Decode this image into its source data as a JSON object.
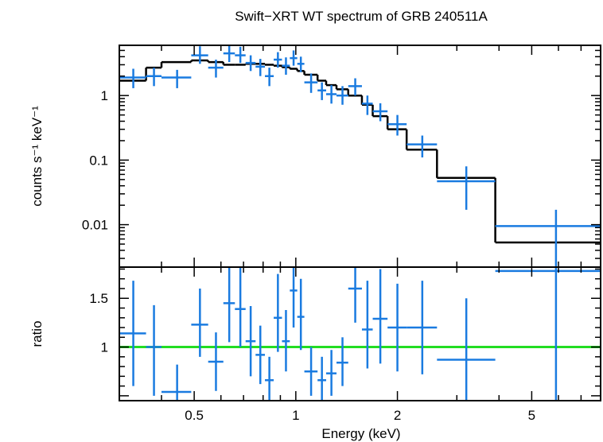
{
  "chart_data": {
    "type": "scatter",
    "title": "Swift−XRT WT spectrum of GRB 240511A",
    "xlabel": "Energy (keV)",
    "x_scale": "log",
    "xlim": [
      0.3,
      8.0
    ],
    "x_ticks": [
      {
        "value": 0.5,
        "label": "0.5"
      },
      {
        "value": 1,
        "label": "1"
      },
      {
        "value": 2,
        "label": "2"
      },
      {
        "value": 5,
        "label": "5"
      }
    ],
    "panels": {
      "spectrum": {
        "ylabel": "counts s⁻¹ keV⁻¹",
        "y_scale": "log",
        "ylim": [
          0.0022,
          6.0
        ],
        "y_ticks": [
          {
            "value": 1,
            "label": "1"
          },
          {
            "value": 0.1,
            "label": "0.1"
          },
          {
            "value": 0.01,
            "label": "0.01"
          }
        ],
        "data_color": "#1a7be0",
        "model_color": "#000000",
        "data": [
          {
            "x": 0.33,
            "xlo": 0.3,
            "xhi": 0.36,
            "y": 1.9,
            "ylo": 1.3,
            "yhi": 2.6
          },
          {
            "x": 0.38,
            "xlo": 0.36,
            "xhi": 0.4,
            "y": 2.0,
            "ylo": 1.4,
            "yhi": 2.7
          },
          {
            "x": 0.445,
            "xlo": 0.4,
            "xhi": 0.49,
            "y": 1.9,
            "ylo": 1.3,
            "yhi": 2.5
          },
          {
            "x": 0.52,
            "xlo": 0.49,
            "xhi": 0.55,
            "y": 4.2,
            "ylo": 3.1,
            "yhi": 5.8
          },
          {
            "x": 0.58,
            "xlo": 0.55,
            "xhi": 0.61,
            "y": 2.7,
            "ylo": 1.9,
            "yhi": 3.6
          },
          {
            "x": 0.635,
            "xlo": 0.61,
            "xhi": 0.66,
            "y": 4.5,
            "ylo": 3.3,
            "yhi": 6.0
          },
          {
            "x": 0.685,
            "xlo": 0.66,
            "xhi": 0.71,
            "y": 4.2,
            "ylo": 3.2,
            "yhi": 5.7
          },
          {
            "x": 0.735,
            "xlo": 0.71,
            "xhi": 0.76,
            "y": 3.2,
            "ylo": 2.4,
            "yhi": 4.2
          },
          {
            "x": 0.785,
            "xlo": 0.76,
            "xhi": 0.81,
            "y": 2.8,
            "ylo": 2.0,
            "yhi": 3.7
          },
          {
            "x": 0.835,
            "xlo": 0.81,
            "xhi": 0.86,
            "y": 2.0,
            "ylo": 1.4,
            "yhi": 2.7
          },
          {
            "x": 0.885,
            "xlo": 0.86,
            "xhi": 0.91,
            "y": 3.6,
            "ylo": 2.7,
            "yhi": 4.7
          },
          {
            "x": 0.935,
            "xlo": 0.91,
            "xhi": 0.96,
            "y": 2.9,
            "ylo": 2.1,
            "yhi": 3.9
          },
          {
            "x": 0.985,
            "xlo": 0.96,
            "xhi": 1.01,
            "y": 3.8,
            "ylo": 2.9,
            "yhi": 5.0
          },
          {
            "x": 1.035,
            "xlo": 1.01,
            "xhi": 1.06,
            "y": 3.1,
            "ylo": 2.3,
            "yhi": 4.0
          },
          {
            "x": 1.11,
            "xlo": 1.06,
            "xhi": 1.16,
            "y": 1.6,
            "ylo": 1.1,
            "yhi": 2.2
          },
          {
            "x": 1.195,
            "xlo": 1.16,
            "xhi": 1.23,
            "y": 1.2,
            "ylo": 0.85,
            "yhi": 1.6
          },
          {
            "x": 1.275,
            "xlo": 1.23,
            "xhi": 1.32,
            "y": 1.05,
            "ylo": 0.75,
            "yhi": 1.45
          },
          {
            "x": 1.375,
            "xlo": 1.32,
            "xhi": 1.43,
            "y": 1.0,
            "ylo": 0.72,
            "yhi": 1.4
          },
          {
            "x": 1.5,
            "xlo": 1.43,
            "xhi": 1.57,
            "y": 1.4,
            "ylo": 1.0,
            "yhi": 1.85
          },
          {
            "x": 1.63,
            "xlo": 1.57,
            "xhi": 1.69,
            "y": 0.75,
            "ylo": 0.5,
            "yhi": 1.0
          },
          {
            "x": 1.78,
            "xlo": 1.69,
            "xhi": 1.87,
            "y": 0.57,
            "ylo": 0.4,
            "yhi": 0.76
          },
          {
            "x": 2.0,
            "xlo": 1.87,
            "xhi": 2.13,
            "y": 0.36,
            "ylo": 0.24,
            "yhi": 0.5
          },
          {
            "x": 2.37,
            "xlo": 2.13,
            "xhi": 2.62,
            "y": 0.175,
            "ylo": 0.11,
            "yhi": 0.24
          },
          {
            "x": 3.2,
            "xlo": 2.62,
            "xhi": 3.9,
            "y": 0.047,
            "ylo": 0.017,
            "yhi": 0.08
          },
          {
            "x": 5.9,
            "xlo": 3.9,
            "xhi": 8.0,
            "y": 0.0095,
            "ylo": 0.0022,
            "yhi": 0.017
          }
        ],
        "model": [
          {
            "xlo": 0.3,
            "xhi": 0.36,
            "y": 1.7
          },
          {
            "xlo": 0.36,
            "xhi": 0.4,
            "y": 2.7
          },
          {
            "xlo": 0.4,
            "xhi": 0.49,
            "y": 3.3
          },
          {
            "xlo": 0.49,
            "xhi": 0.55,
            "y": 3.5
          },
          {
            "xlo": 0.55,
            "xhi": 0.61,
            "y": 3.3
          },
          {
            "xlo": 0.61,
            "xhi": 0.66,
            "y": 3.0
          },
          {
            "xlo": 0.66,
            "xhi": 0.71,
            "y": 3.0
          },
          {
            "xlo": 0.71,
            "xhi": 0.76,
            "y": 3.1
          },
          {
            "xlo": 0.76,
            "xhi": 0.81,
            "y": 3.1
          },
          {
            "xlo": 0.81,
            "xhi": 0.86,
            "y": 3.0
          },
          {
            "xlo": 0.86,
            "xhi": 0.91,
            "y": 2.9
          },
          {
            "xlo": 0.91,
            "xhi": 0.96,
            "y": 2.75
          },
          {
            "xlo": 0.96,
            "xhi": 1.01,
            "y": 2.6
          },
          {
            "xlo": 1.01,
            "xhi": 1.06,
            "y": 2.4
          },
          {
            "xlo": 1.06,
            "xhi": 1.16,
            "y": 2.1
          },
          {
            "xlo": 1.16,
            "xhi": 1.23,
            "y": 1.7
          },
          {
            "xlo": 1.23,
            "xhi": 1.32,
            "y": 1.45
          },
          {
            "xlo": 1.32,
            "xhi": 1.43,
            "y": 1.25
          },
          {
            "xlo": 1.43,
            "xhi": 1.57,
            "y": 1.0
          },
          {
            "xlo": 1.57,
            "xhi": 1.69,
            "y": 0.72
          },
          {
            "xlo": 1.69,
            "xhi": 1.87,
            "y": 0.48
          },
          {
            "xlo": 1.87,
            "xhi": 2.13,
            "y": 0.3
          },
          {
            "xlo": 2.13,
            "xhi": 2.62,
            "y": 0.145
          },
          {
            "xlo": 2.62,
            "xhi": 3.9,
            "y": 0.053
          },
          {
            "xlo": 3.9,
            "xhi": 8.0,
            "y": 0.0053
          }
        ]
      },
      "ratio": {
        "ylabel": "ratio",
        "y_scale": "linear",
        "ylim": [
          0.45,
          1.82
        ],
        "y_ticks": [
          {
            "value": 1,
            "label": "1"
          },
          {
            "value": 1.5,
            "label": "1.5"
          }
        ],
        "reference_line": 1.0,
        "reference_color": "#22dd22",
        "data_color": "#1a7be0",
        "data": [
          {
            "x": 0.33,
            "xlo": 0.3,
            "xhi": 0.36,
            "y": 1.14,
            "ylo": 0.6,
            "yhi": 1.68
          },
          {
            "x": 0.38,
            "xlo": 0.36,
            "xhi": 0.4,
            "y": 1.0,
            "ylo": 0.5,
            "yhi": 1.43
          },
          {
            "x": 0.445,
            "xlo": 0.4,
            "xhi": 0.49,
            "y": 0.54,
            "ylo": 0.45,
            "yhi": 0.82
          },
          {
            "x": 0.52,
            "xlo": 0.49,
            "xhi": 0.55,
            "y": 1.23,
            "ylo": 0.9,
            "yhi": 1.6
          },
          {
            "x": 0.58,
            "xlo": 0.55,
            "xhi": 0.61,
            "y": 0.85,
            "ylo": 0.55,
            "yhi": 1.15
          },
          {
            "x": 0.635,
            "xlo": 0.61,
            "xhi": 0.66,
            "y": 1.45,
            "ylo": 1.05,
            "yhi": 1.82
          },
          {
            "x": 0.685,
            "xlo": 0.66,
            "xhi": 0.71,
            "y": 1.39,
            "ylo": 1.0,
            "yhi": 1.82
          },
          {
            "x": 0.735,
            "xlo": 0.71,
            "xhi": 0.76,
            "y": 1.06,
            "ylo": 0.7,
            "yhi": 1.42
          },
          {
            "x": 0.785,
            "xlo": 0.76,
            "xhi": 0.81,
            "y": 0.92,
            "ylo": 0.62,
            "yhi": 1.22
          },
          {
            "x": 0.835,
            "xlo": 0.81,
            "xhi": 0.86,
            "y": 0.66,
            "ylo": 0.45,
            "yhi": 0.9
          },
          {
            "x": 0.885,
            "xlo": 0.86,
            "xhi": 0.91,
            "y": 1.3,
            "ylo": 0.95,
            "yhi": 1.75
          },
          {
            "x": 0.935,
            "xlo": 0.91,
            "xhi": 0.96,
            "y": 1.06,
            "ylo": 0.75,
            "yhi": 1.38
          },
          {
            "x": 0.985,
            "xlo": 0.96,
            "xhi": 1.01,
            "y": 1.58,
            "ylo": 1.2,
            "yhi": 1.82
          },
          {
            "x": 1.035,
            "xlo": 1.01,
            "xhi": 1.06,
            "y": 1.31,
            "ylo": 0.97,
            "yhi": 1.7
          },
          {
            "x": 1.11,
            "xlo": 1.06,
            "xhi": 1.16,
            "y": 0.75,
            "ylo": 0.5,
            "yhi": 1.0
          },
          {
            "x": 1.195,
            "xlo": 1.16,
            "xhi": 1.23,
            "y": 0.66,
            "ylo": 0.45,
            "yhi": 0.9
          },
          {
            "x": 1.275,
            "xlo": 1.23,
            "xhi": 1.32,
            "y": 0.73,
            "ylo": 0.5,
            "yhi": 0.97
          },
          {
            "x": 1.375,
            "xlo": 1.32,
            "xhi": 1.43,
            "y": 0.84,
            "ylo": 0.6,
            "yhi": 1.1
          },
          {
            "x": 1.5,
            "xlo": 1.43,
            "xhi": 1.57,
            "y": 1.6,
            "ylo": 1.25,
            "yhi": 1.82
          },
          {
            "x": 1.63,
            "xlo": 1.57,
            "xhi": 1.69,
            "y": 1.18,
            "ylo": 0.78,
            "yhi": 1.68
          },
          {
            "x": 1.78,
            "xlo": 1.69,
            "xhi": 1.87,
            "y": 1.29,
            "ylo": 0.83,
            "yhi": 1.8
          },
          {
            "x": 2.0,
            "xlo": 1.87,
            "xhi": 2.13,
            "y": 1.2,
            "ylo": 0.75,
            "yhi": 1.65
          },
          {
            "x": 2.37,
            "xlo": 2.13,
            "xhi": 2.62,
            "y": 1.2,
            "ylo": 0.72,
            "yhi": 1.68
          },
          {
            "x": 3.2,
            "xlo": 2.62,
            "xhi": 3.9,
            "y": 0.87,
            "ylo": 0.45,
            "yhi": 1.5
          },
          {
            "x": 5.9,
            "xlo": 3.9,
            "xhi": 8.0,
            "y": 1.78,
            "ylo": 0.45,
            "yhi": 1.82
          }
        ]
      }
    }
  }
}
